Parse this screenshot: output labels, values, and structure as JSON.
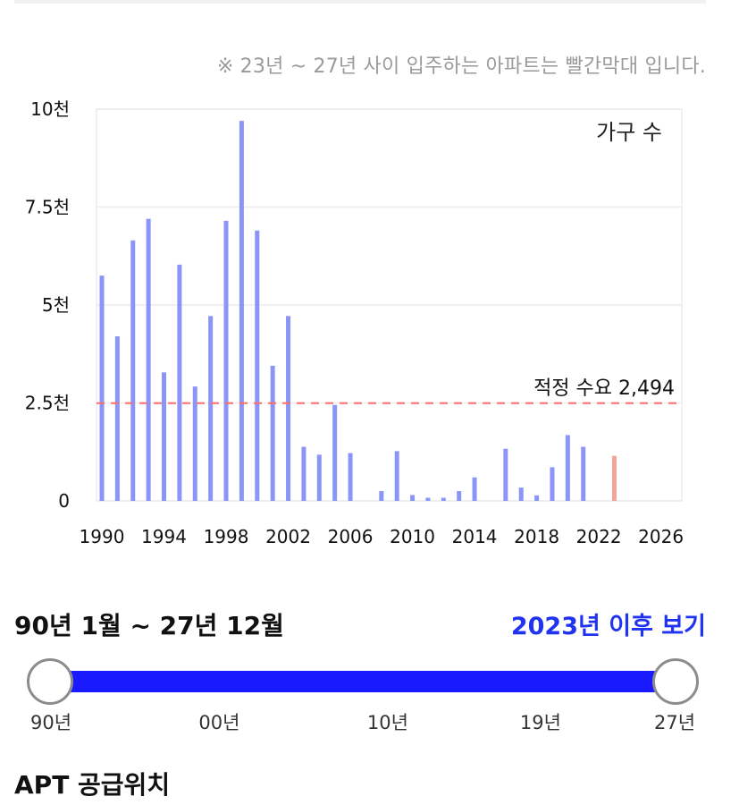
{
  "note": "※ 23년 ~ 27년 사이 입주하는 아파트는 빨간막대 입니다.",
  "chart_data": {
    "type": "bar",
    "legend_label": "가구 수",
    "legend_position": "top-right",
    "ylim": [
      0,
      10000
    ],
    "yticks": [
      {
        "value": 0,
        "label": "0"
      },
      {
        "value": 2500,
        "label": "2.5천"
      },
      {
        "value": 5000,
        "label": "5천"
      },
      {
        "value": 7500,
        "label": "7.5천"
      },
      {
        "value": 10000,
        "label": "10천"
      }
    ],
    "xlim": [
      1990,
      2027
    ],
    "xticks": [
      "1990",
      "1994",
      "1998",
      "2002",
      "2006",
      "2010",
      "2014",
      "2018",
      "2022",
      "2026"
    ],
    "grid": true,
    "reference_line": {
      "value": 2494,
      "label": "적정 수요 2,494",
      "color": "#ff6b6b"
    },
    "colors": {
      "normal": "#8b95f8",
      "highlight": "#f7a39b"
    },
    "highlight_range": [
      "2023",
      "2027"
    ],
    "bars": [
      {
        "year": 1990,
        "value": 5750
      },
      {
        "year": 1991,
        "value": 4200
      },
      {
        "year": 1992,
        "value": 6650
      },
      {
        "year": 1993,
        "value": 7200
      },
      {
        "year": 1994,
        "value": 3280
      },
      {
        "year": 1995,
        "value": 6030
      },
      {
        "year": 1996,
        "value": 2920
      },
      {
        "year": 1997,
        "value": 4720
      },
      {
        "year": 1998,
        "value": 7150
      },
      {
        "year": 1999,
        "value": 9700
      },
      {
        "year": 2000,
        "value": 6900
      },
      {
        "year": 2001,
        "value": 3450
      },
      {
        "year": 2002,
        "value": 4720
      },
      {
        "year": 2003,
        "value": 1380
      },
      {
        "year": 2004,
        "value": 1180
      },
      {
        "year": 2005,
        "value": 2450
      },
      {
        "year": 2006,
        "value": 1220
      },
      {
        "year": 2008,
        "value": 250
      },
      {
        "year": 2009,
        "value": 1270
      },
      {
        "year": 2010,
        "value": 150
      },
      {
        "year": 2011,
        "value": 80
      },
      {
        "year": 2012,
        "value": 80
      },
      {
        "year": 2013,
        "value": 250
      },
      {
        "year": 2014,
        "value": 600
      },
      {
        "year": 2016,
        "value": 1330
      },
      {
        "year": 2017,
        "value": 340
      },
      {
        "year": 2018,
        "value": 140
      },
      {
        "year": 2019,
        "value": 860
      },
      {
        "year": 2020,
        "value": 1680
      },
      {
        "year": 2021,
        "value": 1380
      },
      {
        "year": 2023,
        "value": 1150
      }
    ]
  },
  "range_label": "90년 1월 ~ 27년 12월",
  "view_after_label": "2023년 이후 보기",
  "slider": {
    "start": 0,
    "end": 1,
    "ticks": [
      {
        "label": "90년",
        "pos": 0
      },
      {
        "label": "00년",
        "pos": 0.27
      },
      {
        "label": "10년",
        "pos": 0.54
      },
      {
        "label": "19년",
        "pos": 0.785
      },
      {
        "label": "27년",
        "pos": 1
      }
    ]
  },
  "section_title": "APT 공급위치"
}
